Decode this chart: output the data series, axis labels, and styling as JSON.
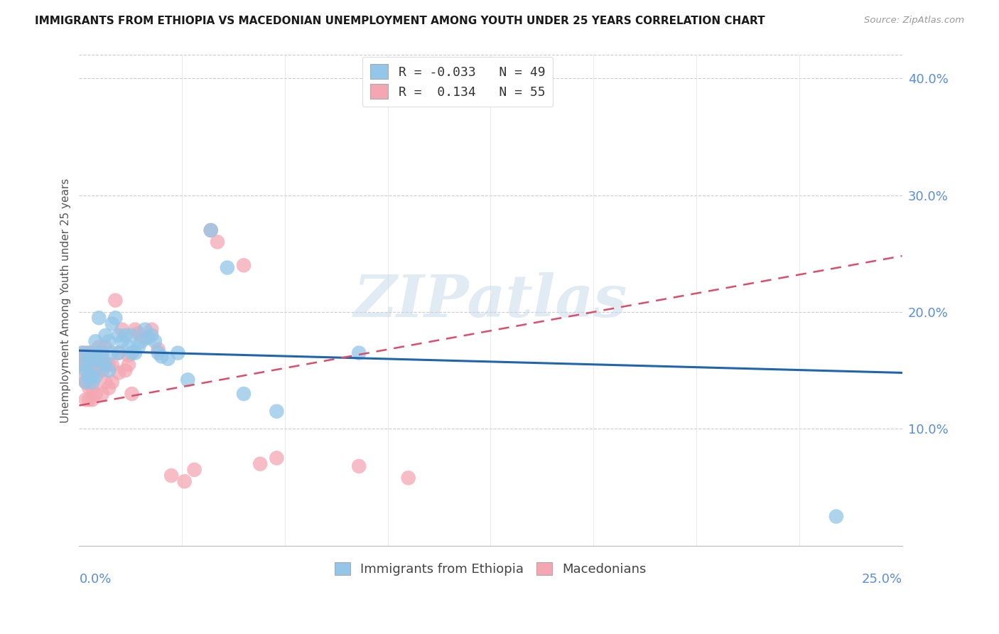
{
  "title": "IMMIGRANTS FROM ETHIOPIA VS MACEDONIAN UNEMPLOYMENT AMONG YOUTH UNDER 25 YEARS CORRELATION CHART",
  "source": "Source: ZipAtlas.com",
  "ylabel": "Unemployment Among Youth under 25 years",
  "xmin": 0.0,
  "xmax": 0.25,
  "ymin": 0.0,
  "ymax": 0.42,
  "yticks": [
    0.1,
    0.2,
    0.3,
    0.4
  ],
  "ytick_labels": [
    "10.0%",
    "20.0%",
    "30.0%",
    "40.0%"
  ],
  "watermark": "ZIPatlas",
  "blue_color": "#93c6e8",
  "pink_color": "#f4a7b3",
  "blue_line_color": "#2166ac",
  "pink_line_color": "#d94f6b",
  "legend_r1": "R = -0.033",
  "legend_n1": "N = 49",
  "legend_r2": "R =  0.134",
  "legend_n2": "N = 55",
  "blue_trendline": [
    0.0,
    0.25,
    0.167,
    0.148
  ],
  "pink_trendline": [
    0.0,
    0.25,
    0.12,
    0.248
  ],
  "ethiopia_x": [
    0.001,
    0.001,
    0.002,
    0.002,
    0.003,
    0.003,
    0.003,
    0.004,
    0.004,
    0.004,
    0.005,
    0.005,
    0.005,
    0.006,
    0.006,
    0.007,
    0.007,
    0.008,
    0.008,
    0.009,
    0.009,
    0.01,
    0.01,
    0.011,
    0.012,
    0.012,
    0.013,
    0.014,
    0.015,
    0.016,
    0.016,
    0.017,
    0.018,
    0.019,
    0.02,
    0.021,
    0.022,
    0.023,
    0.024,
    0.025,
    0.027,
    0.03,
    0.033,
    0.04,
    0.045,
    0.05,
    0.06,
    0.085,
    0.23
  ],
  "ethiopia_y": [
    0.165,
    0.155,
    0.15,
    0.14,
    0.165,
    0.155,
    0.145,
    0.16,
    0.145,
    0.14,
    0.175,
    0.16,
    0.145,
    0.195,
    0.165,
    0.165,
    0.155,
    0.18,
    0.155,
    0.175,
    0.15,
    0.19,
    0.165,
    0.195,
    0.18,
    0.165,
    0.175,
    0.18,
    0.17,
    0.165,
    0.18,
    0.165,
    0.17,
    0.175,
    0.185,
    0.178,
    0.18,
    0.175,
    0.165,
    0.162,
    0.16,
    0.165,
    0.142,
    0.27,
    0.238,
    0.13,
    0.115,
    0.165,
    0.025
  ],
  "macedonian_x": [
    0.001,
    0.001,
    0.001,
    0.002,
    0.002,
    0.002,
    0.002,
    0.003,
    0.003,
    0.003,
    0.003,
    0.003,
    0.004,
    0.004,
    0.004,
    0.004,
    0.005,
    0.005,
    0.005,
    0.006,
    0.006,
    0.006,
    0.007,
    0.007,
    0.007,
    0.008,
    0.008,
    0.008,
    0.009,
    0.009,
    0.01,
    0.01,
    0.011,
    0.012,
    0.012,
    0.013,
    0.014,
    0.015,
    0.015,
    0.016,
    0.017,
    0.018,
    0.02,
    0.022,
    0.024,
    0.028,
    0.032,
    0.035,
    0.04,
    0.042,
    0.05,
    0.055,
    0.06,
    0.085,
    0.1
  ],
  "macedonian_y": [
    0.165,
    0.155,
    0.145,
    0.165,
    0.155,
    0.14,
    0.125,
    0.165,
    0.155,
    0.145,
    0.135,
    0.125,
    0.155,
    0.145,
    0.135,
    0.125,
    0.16,
    0.15,
    0.13,
    0.17,
    0.16,
    0.15,
    0.16,
    0.15,
    0.13,
    0.17,
    0.155,
    0.14,
    0.155,
    0.135,
    0.155,
    0.14,
    0.21,
    0.165,
    0.148,
    0.185,
    0.15,
    0.163,
    0.155,
    0.13,
    0.185,
    0.182,
    0.178,
    0.185,
    0.168,
    0.06,
    0.055,
    0.065,
    0.27,
    0.26,
    0.24,
    0.07,
    0.075,
    0.068,
    0.058
  ]
}
